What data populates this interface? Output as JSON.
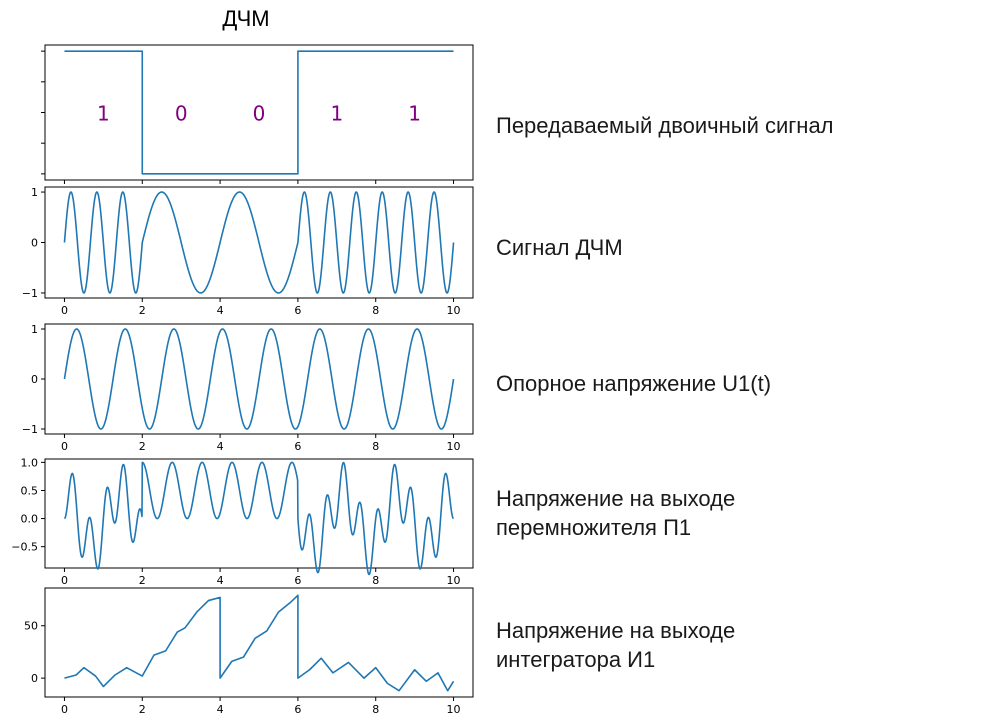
{
  "figure": {
    "title": "ДЧМ"
  },
  "captions": [
    {
      "lines": [
        "Передаваемый двоичный сигнал"
      ]
    },
    {
      "lines": [
        "Сигнал ДЧМ"
      ]
    },
    {
      "lines": [
        "Опорное напряжение U1(t)"
      ]
    },
    {
      "lines": [
        "Напряжение на выходе",
        "перемножителя П1"
      ]
    },
    {
      "lines": [
        "Напряжение на выходе",
        "интегратора И1"
      ]
    }
  ],
  "colors": {
    "line": "#1f77b4",
    "bit_label": "#800080",
    "axes": "#000000"
  },
  "chart_data": [
    {
      "type": "line",
      "title": "ДЧМ",
      "x": [
        0,
        2,
        2,
        6,
        6,
        10
      ],
      "y": [
        1,
        1,
        0,
        0,
        1,
        1
      ],
      "xlim": [
        -0.5,
        10.5
      ],
      "ylim": [
        -0.05,
        1.05
      ],
      "bits": [
        {
          "x": 1,
          "label": "1"
        },
        {
          "x": 3,
          "label": "0"
        },
        {
          "x": 5,
          "label": "0"
        },
        {
          "x": 7,
          "label": "1"
        },
        {
          "x": 9,
          "label": "1"
        }
      ],
      "xticks": [
        0,
        2,
        4,
        6,
        8,
        10
      ],
      "xticks_labeled": false,
      "yticks": [
        0,
        0.25,
        0.5,
        0.75,
        1
      ],
      "yticks_labeled": false
    },
    {
      "type": "line",
      "function": "fsk",
      "segments": [
        {
          "from": 0,
          "to": 2,
          "freq": 1.5
        },
        {
          "from": 2,
          "to": 6,
          "freq": 0.5
        },
        {
          "from": 6,
          "to": 10,
          "freq": 1.5
        }
      ],
      "xlim": [
        -0.5,
        10.5
      ],
      "ylim": [
        -1.1,
        1.1
      ],
      "xticks": [
        0,
        2,
        4,
        6,
        8,
        10
      ],
      "xtick_labels": [
        "0",
        "2",
        "4",
        "6",
        "8",
        "10"
      ],
      "yticks": [
        -1,
        0,
        1
      ],
      "ytick_labels": [
        "−1",
        "0",
        "1"
      ]
    },
    {
      "type": "line",
      "function": "sine",
      "freq": 0.8,
      "xlim": [
        -0.5,
        10.5
      ],
      "ylim": [
        -1.1,
        1.1
      ],
      "xticks": [
        0,
        2,
        4,
        6,
        8,
        10
      ],
      "xtick_labels": [
        "0",
        "2",
        "4",
        "6",
        "8",
        "10"
      ],
      "yticks": [
        -1,
        0,
        1
      ],
      "ytick_labels": [
        "−1",
        "0",
        "1"
      ]
    },
    {
      "type": "line",
      "function": "product",
      "xlim": [
        -0.5,
        10.5
      ],
      "ylim": [
        -0.88,
        1.06
      ],
      "xticks": [
        0,
        2,
        4,
        6,
        8,
        10
      ],
      "xtick_labels": [
        "0",
        "2",
        "4",
        "6",
        "8",
        "10"
      ],
      "yticks": [
        -0.5,
        0,
        0.5,
        1
      ],
      "ytick_labels": [
        "−0.5",
        "0.0",
        "0.5",
        "1.0"
      ]
    },
    {
      "type": "line",
      "function": "integral",
      "x": [
        0,
        0.3,
        0.5,
        0.8,
        1.0,
        1.3,
        1.6,
        2.0,
        2.3,
        2.6,
        2.9,
        3.1,
        3.4,
        3.7,
        4.0,
        4.0,
        4.3,
        4.6,
        4.9,
        5.2,
        5.5,
        5.8,
        6.0,
        6.0,
        6.3,
        6.6,
        6.9,
        7.3,
        7.7,
        8.0,
        8.3,
        8.6,
        9.0,
        9.3,
        9.6,
        9.85,
        10.0
      ],
      "y": [
        0,
        3,
        10,
        2,
        -8,
        3,
        10,
        2,
        22,
        26,
        44,
        48,
        63,
        74,
        77,
        0,
        16,
        20,
        38,
        45,
        63,
        72,
        79,
        0,
        8,
        19,
        5,
        15,
        0,
        10,
        -5,
        -12,
        8,
        -3,
        5,
        -12,
        -3
      ],
      "xlim": [
        -0.5,
        10.5
      ],
      "ylim": [
        -18,
        86
      ],
      "xticks": [
        0,
        2,
        4,
        6,
        8,
        10
      ],
      "xtick_labels": [
        "0",
        "2",
        "4",
        "6",
        "8",
        "10"
      ],
      "yticks": [
        0,
        50
      ],
      "ytick_labels": [
        "0",
        "50"
      ]
    }
  ]
}
